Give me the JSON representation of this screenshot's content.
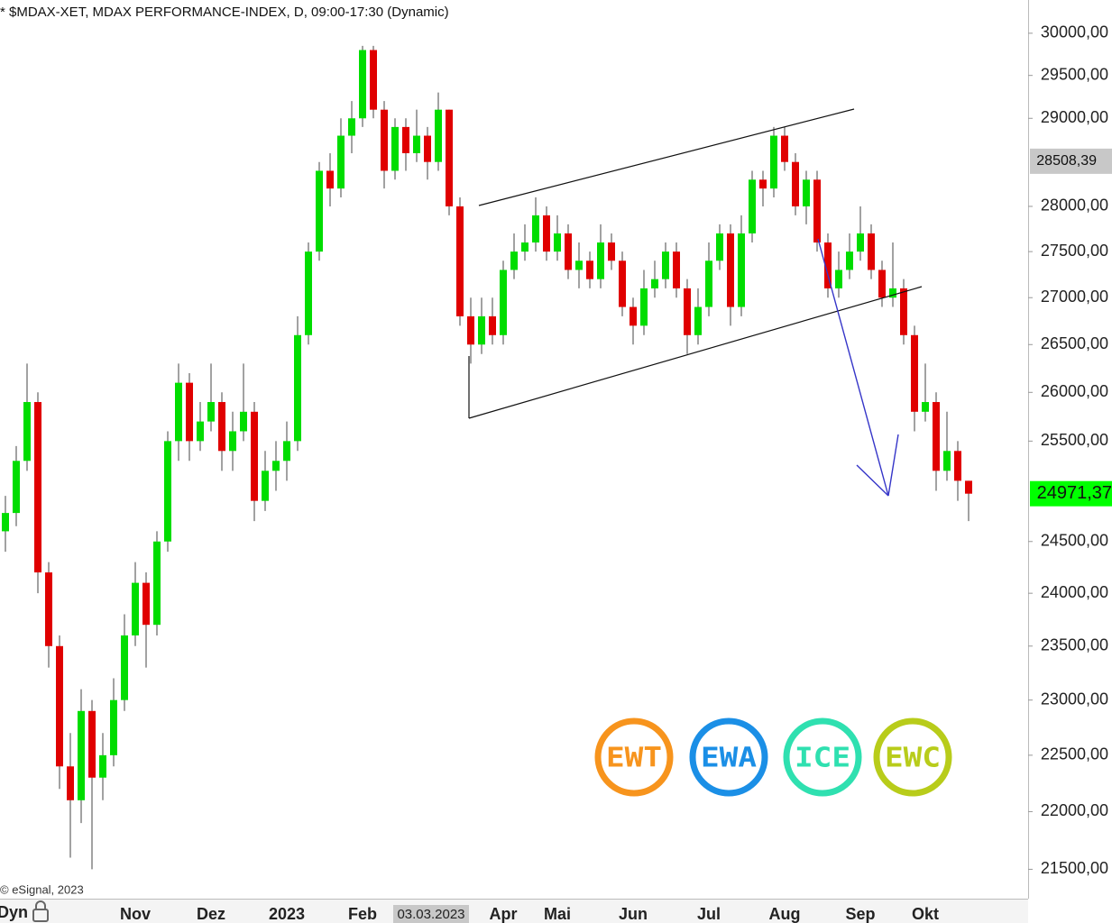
{
  "chart_data": {
    "type": "candlestick",
    "title": "* $MDAX-XET, MDAX PERFORMANCE-INDEX, D, 09:00-17:30 (Dynamic)",
    "copyright": "© eSignal, 2023",
    "mode_button": "Dyn",
    "log_scale": true,
    "up_color": "#00dd00",
    "down_color": "#e00000",
    "categories": [
      null,
      null,
      null,
      null,
      null,
      null,
      null,
      null,
      null,
      null,
      null,
      null,
      "Nov",
      null,
      null,
      null,
      null,
      null,
      null,
      "Dez",
      null,
      null,
      null,
      null,
      null,
      null,
      "2023",
      null,
      null,
      null,
      null,
      null,
      null,
      "Feb",
      null,
      null,
      null,
      null,
      null,
      "03.03.2023",
      null,
      null,
      null,
      null,
      null,
      null,
      "Apr",
      null,
      null,
      null,
      null,
      "Mai",
      null,
      null,
      null,
      null,
      null,
      null,
      "Jun",
      null,
      null,
      null,
      null,
      null,
      null,
      "Jul",
      null,
      null,
      null,
      null,
      null,
      null,
      "Aug",
      null,
      null,
      null,
      null,
      null,
      null,
      "Sep",
      null,
      null,
      null,
      null,
      null,
      "Okt",
      null,
      null,
      null,
      null
    ],
    "open": [
      24600,
      24780,
      25300,
      25900,
      24200,
      23500,
      22400,
      22100,
      22900,
      22300,
      22500,
      23000,
      23600,
      24100,
      23700,
      24500,
      25500,
      26100,
      25500,
      25700,
      25900,
      25400,
      25600,
      25800,
      24900,
      25200,
      25300,
      25500,
      26600,
      27500,
      28400,
      28200,
      28800,
      29000,
      29800,
      29100,
      28400,
      28900,
      28600,
      28800,
      28500,
      29100,
      28000,
      26800,
      26500,
      26800,
      26600,
      27300,
      27500,
      27600,
      27900,
      27500,
      27700,
      27300,
      27400,
      27200,
      27600,
      27400,
      26900,
      26700,
      27100,
      27200,
      27500,
      27100,
      26600,
      26900,
      27400,
      27700,
      26900,
      27700,
      28300,
      28200,
      28800,
      28500,
      28000,
      28300,
      27600,
      27100,
      27300,
      27500,
      27700,
      27300,
      27000,
      27100,
      26600,
      25800,
      25900,
      25200,
      25400,
      25100
    ],
    "high": [
      24950,
      25450,
      26300,
      26000,
      24300,
      23600,
      22700,
      23100,
      23000,
      22700,
      23200,
      23800,
      24300,
      24200,
      24600,
      25600,
      26300,
      26200,
      25900,
      26300,
      26000,
      25800,
      26300,
      25900,
      25400,
      25500,
      25700,
      26800,
      27600,
      28500,
      28600,
      29000,
      29200,
      29850,
      29850,
      29200,
      29000,
      29000,
      29100,
      28900,
      29300,
      29100,
      28100,
      27000,
      27000,
      27000,
      27400,
      27700,
      27800,
      28100,
      28000,
      27900,
      27800,
      27600,
      27500,
      27800,
      27700,
      27500,
      27000,
      27300,
      27400,
      27600,
      27600,
      27200,
      27100,
      27600,
      27800,
      27800,
      27900,
      28400,
      28400,
      28900,
      28900,
      28600,
      28400,
      28400,
      27700,
      27500,
      27700,
      28000,
      27800,
      27400,
      27600,
      27200,
      26700,
      26300,
      26000,
      25800,
      25500,
      25100
    ],
    "low": [
      24400,
      24650,
      25200,
      24000,
      23300,
      22200,
      21600,
      21900,
      21500,
      22100,
      22400,
      22900,
      23500,
      23300,
      23600,
      24400,
      25300,
      25300,
      25400,
      25600,
      25200,
      25200,
      25500,
      24700,
      24800,
      25000,
      25100,
      25400,
      26500,
      27400,
      28000,
      28100,
      28600,
      28900,
      29000,
      28200,
      28300,
      28400,
      28500,
      28300,
      28400,
      27900,
      26700,
      26300,
      26400,
      26500,
      26500,
      27200,
      27400,
      27500,
      27400,
      27400,
      27200,
      27100,
      27100,
      27100,
      27300,
      26800,
      26500,
      26600,
      27000,
      27100,
      27000,
      26400,
      26500,
      26800,
      27300,
      26700,
      26800,
      27600,
      28000,
      28100,
      28400,
      27900,
      27800,
      27500,
      27000,
      27000,
      27200,
      27400,
      27200,
      26900,
      26900,
      26500,
      25600,
      25700,
      25000,
      25100,
      24900,
      24700
    ],
    "close": [
      24780,
      25300,
      25900,
      24200,
      23500,
      22400,
      22100,
      22900,
      22300,
      22500,
      23000,
      23600,
      24100,
      23700,
      24500,
      25500,
      26100,
      25500,
      25700,
      25900,
      25400,
      25600,
      25800,
      24900,
      25200,
      25300,
      25500,
      26600,
      27500,
      28400,
      28200,
      28800,
      29000,
      29800,
      29100,
      28400,
      28900,
      28600,
      28800,
      28500,
      29100,
      28000,
      26800,
      26500,
      26800,
      26600,
      27300,
      27500,
      27600,
      27900,
      27500,
      27700,
      27300,
      27400,
      27200,
      27600,
      27400,
      26900,
      26700,
      27100,
      27200,
      27500,
      27100,
      26600,
      26900,
      27400,
      27700,
      26900,
      27700,
      28300,
      28200,
      28800,
      28500,
      28000,
      28300,
      27600,
      27100,
      27300,
      27500,
      27700,
      27300,
      27000,
      27100,
      26600,
      25800,
      25900,
      25200,
      25400,
      25100,
      24971.37
    ],
    "ylim": [
      21250,
      30400
    ],
    "yticks": [
      {
        "value": 30000,
        "label": "30000,00"
      },
      {
        "value": 29500,
        "label": "29500,00"
      },
      {
        "value": 29000,
        "label": "29000,00"
      },
      {
        "value": 28000,
        "label": "28000,00"
      },
      {
        "value": 27500,
        "label": "27500,00"
      },
      {
        "value": 27000,
        "label": "27000,00"
      },
      {
        "value": 26500,
        "label": "26500,00"
      },
      {
        "value": 26000,
        "label": "26000,00"
      },
      {
        "value": 25500,
        "label": "25500,00"
      },
      {
        "value": 24500,
        "label": "24500,00"
      },
      {
        "value": 24000,
        "label": "24000,00"
      },
      {
        "value": 23500,
        "label": "23500,00"
      },
      {
        "value": 23000,
        "label": "23000,00"
      },
      {
        "value": 22500,
        "label": "22500,00"
      },
      {
        "value": 22000,
        "label": "22000,00"
      },
      {
        "value": 21500,
        "label": "21500,00"
      }
    ],
    "price_markers": [
      {
        "value": 28508.39,
        "label": "28508,39",
        "color": "#c8c8c8"
      },
      {
        "value": 24971.37,
        "label": "24971,37",
        "color": "#00ff00"
      }
    ],
    "logos": [
      {
        "text": "EWT",
        "color": "#f7941d"
      },
      {
        "text": "EWA",
        "color": "#1b8fe6"
      },
      {
        "text": "ICE",
        "color": "#2fe0b0"
      },
      {
        "text": "EWC",
        "color": "#b8cc1a"
      }
    ]
  }
}
